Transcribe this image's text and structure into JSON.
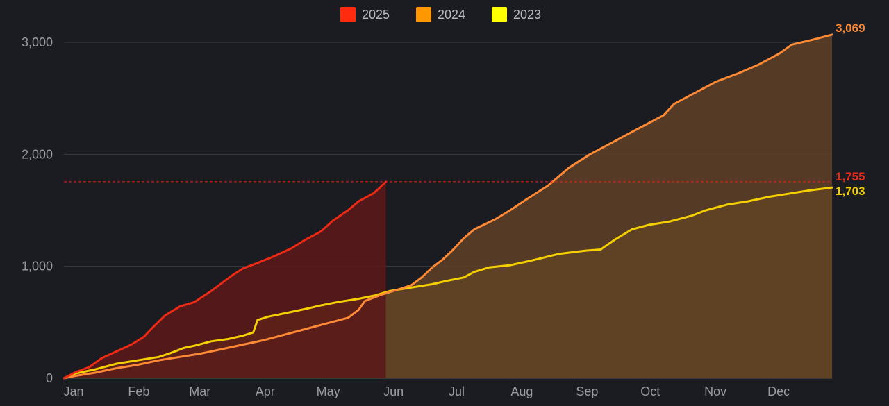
{
  "chart_data": {
    "type": "area",
    "title": "",
    "xlabel": "",
    "ylabel": "",
    "x_domain": [
      0,
      365
    ],
    "ylim": [
      0,
      3000
    ],
    "grid": true,
    "legend_position": "top-center",
    "months": [
      {
        "label": "Jan",
        "day": 0
      },
      {
        "label": "Feb",
        "day": 31
      },
      {
        "label": "Mar",
        "day": 60
      },
      {
        "label": "Apr",
        "day": 91
      },
      {
        "label": "May",
        "day": 121
      },
      {
        "label": "Jun",
        "day": 152
      },
      {
        "label": "Jul",
        "day": 182
      },
      {
        "label": "Aug",
        "day": 213
      },
      {
        "label": "Sep",
        "day": 244
      },
      {
        "label": "Oct",
        "day": 274
      },
      {
        "label": "Nov",
        "day": 305
      },
      {
        "label": "Dec",
        "day": 335
      }
    ],
    "y_ticks": [
      {
        "value": 0,
        "label": "0"
      },
      {
        "value": 1000,
        "label": "1,000"
      },
      {
        "value": 2000,
        "label": "2,000"
      },
      {
        "value": 3000,
        "label": "3,000"
      }
    ],
    "reference_line": {
      "value": 1755,
      "color": "#e8231a"
    },
    "series": [
      {
        "name": "2023",
        "color": "#f5d000",
        "legend_color": "#ffff00",
        "fill": "#8a6519",
        "end_label": "1,703",
        "points": [
          [
            0,
            0
          ],
          [
            5,
            40
          ],
          [
            15,
            80
          ],
          [
            25,
            130
          ],
          [
            35,
            160
          ],
          [
            45,
            190
          ],
          [
            50,
            220
          ],
          [
            57,
            270
          ],
          [
            62,
            290
          ],
          [
            70,
            330
          ],
          [
            78,
            350
          ],
          [
            85,
            380
          ],
          [
            90,
            410
          ],
          [
            92,
            520
          ],
          [
            97,
            550
          ],
          [
            105,
            580
          ],
          [
            115,
            620
          ],
          [
            122,
            650
          ],
          [
            130,
            680
          ],
          [
            140,
            710
          ],
          [
            148,
            740
          ],
          [
            155,
            780
          ],
          [
            165,
            810
          ],
          [
            175,
            840
          ],
          [
            182,
            870
          ],
          [
            190,
            900
          ],
          [
            195,
            950
          ],
          [
            202,
            990
          ],
          [
            212,
            1010
          ],
          [
            222,
            1050
          ],
          [
            235,
            1110
          ],
          [
            248,
            1140
          ],
          [
            255,
            1150
          ],
          [
            262,
            1240
          ],
          [
            270,
            1330
          ],
          [
            278,
            1370
          ],
          [
            288,
            1400
          ],
          [
            298,
            1450
          ],
          [
            305,
            1500
          ],
          [
            315,
            1550
          ],
          [
            325,
            1580
          ],
          [
            335,
            1620
          ],
          [
            345,
            1650
          ],
          [
            355,
            1680
          ],
          [
            365,
            1703
          ]
        ]
      },
      {
        "name": "2024",
        "color": "#ff8a35",
        "legend_color": "#ff9800",
        "fill": "#5c3f26",
        "end_label": "3,069",
        "points": [
          [
            0,
            0
          ],
          [
            5,
            20
          ],
          [
            15,
            50
          ],
          [
            25,
            90
          ],
          [
            35,
            120
          ],
          [
            45,
            160
          ],
          [
            55,
            190
          ],
          [
            65,
            220
          ],
          [
            75,
            260
          ],
          [
            85,
            300
          ],
          [
            95,
            340
          ],
          [
            105,
            390
          ],
          [
            115,
            440
          ],
          [
            125,
            490
          ],
          [
            135,
            540
          ],
          [
            140,
            610
          ],
          [
            143,
            690
          ],
          [
            150,
            740
          ],
          [
            160,
            800
          ],
          [
            165,
            830
          ],
          [
            170,
            900
          ],
          [
            175,
            990
          ],
          [
            180,
            1060
          ],
          [
            185,
            1150
          ],
          [
            190,
            1250
          ],
          [
            195,
            1330
          ],
          [
            205,
            1420
          ],
          [
            212,
            1500
          ],
          [
            220,
            1600
          ],
          [
            230,
            1720
          ],
          [
            240,
            1880
          ],
          [
            250,
            2000
          ],
          [
            258,
            2080
          ],
          [
            265,
            2150
          ],
          [
            275,
            2250
          ],
          [
            285,
            2350
          ],
          [
            290,
            2450
          ],
          [
            300,
            2550
          ],
          [
            310,
            2650
          ],
          [
            320,
            2720
          ],
          [
            330,
            2800
          ],
          [
            340,
            2900
          ],
          [
            346,
            2980
          ],
          [
            355,
            3020
          ],
          [
            365,
            3069
          ]
        ]
      },
      {
        "name": "2025",
        "color": "#ee2a14",
        "legend_color": "#ff2b0f",
        "fill": "#5a1a19",
        "end_label": "1,755",
        "points": [
          [
            0,
            0
          ],
          [
            5,
            50
          ],
          [
            12,
            100
          ],
          [
            18,
            180
          ],
          [
            25,
            240
          ],
          [
            32,
            300
          ],
          [
            38,
            370
          ],
          [
            42,
            450
          ],
          [
            48,
            560
          ],
          [
            55,
            640
          ],
          [
            62,
            680
          ],
          [
            70,
            780
          ],
          [
            75,
            850
          ],
          [
            80,
            920
          ],
          [
            85,
            980
          ],
          [
            92,
            1030
          ],
          [
            100,
            1090
          ],
          [
            108,
            1160
          ],
          [
            115,
            1240
          ],
          [
            122,
            1310
          ],
          [
            128,
            1410
          ],
          [
            135,
            1500
          ],
          [
            140,
            1580
          ],
          [
            147,
            1650
          ],
          [
            150,
            1700
          ],
          [
            153,
            1755
          ]
        ]
      }
    ]
  }
}
